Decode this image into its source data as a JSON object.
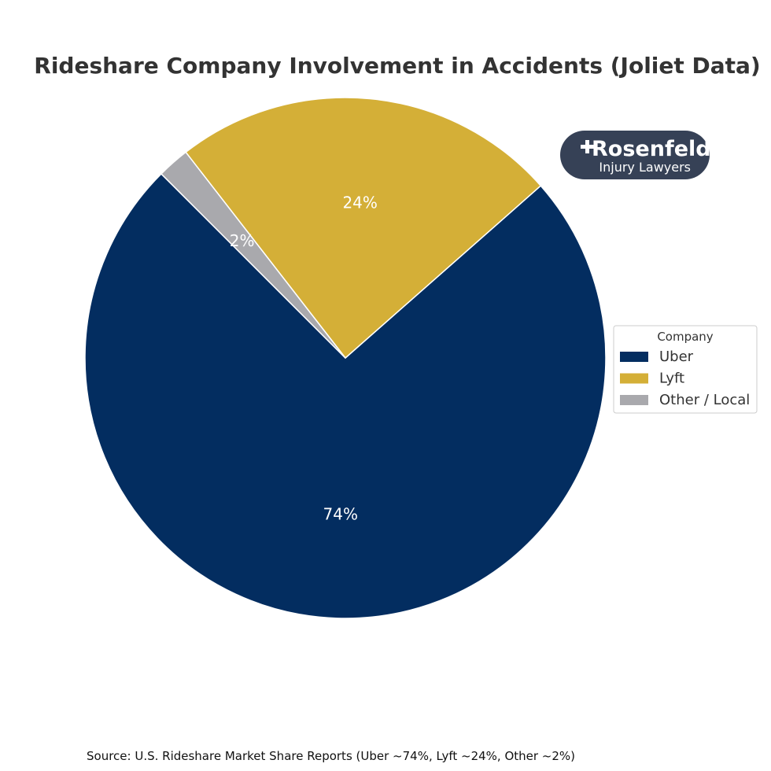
{
  "chart_data": {
    "type": "pie",
    "title": "Rideshare Company Involvement in Accidents (Joliet Data)",
    "slices": [
      {
        "label": "Uber",
        "value": 74,
        "display": "74%",
        "color": "#032d60"
      },
      {
        "label": "Lyft",
        "value": 24,
        "display": "24%",
        "color": "#d4af37"
      },
      {
        "label": "Other / Local",
        "value": 2,
        "display": "2%",
        "color": "#a9a9ad"
      }
    ],
    "start_angle_deg": 135,
    "direction": "counterclockwise",
    "legend": {
      "title": "Company",
      "placement": "right",
      "entries": [
        "Uber",
        "Lyft",
        "Other / Local"
      ]
    },
    "source": "Source: U.S. Rideshare Market Share Reports (Uber ~74%, Lyft ~24%, Other ~2%)"
  },
  "logo": {
    "line1": "Rosenfeld",
    "line2": "Injury Lawyers",
    "background_color": "#364156"
  }
}
